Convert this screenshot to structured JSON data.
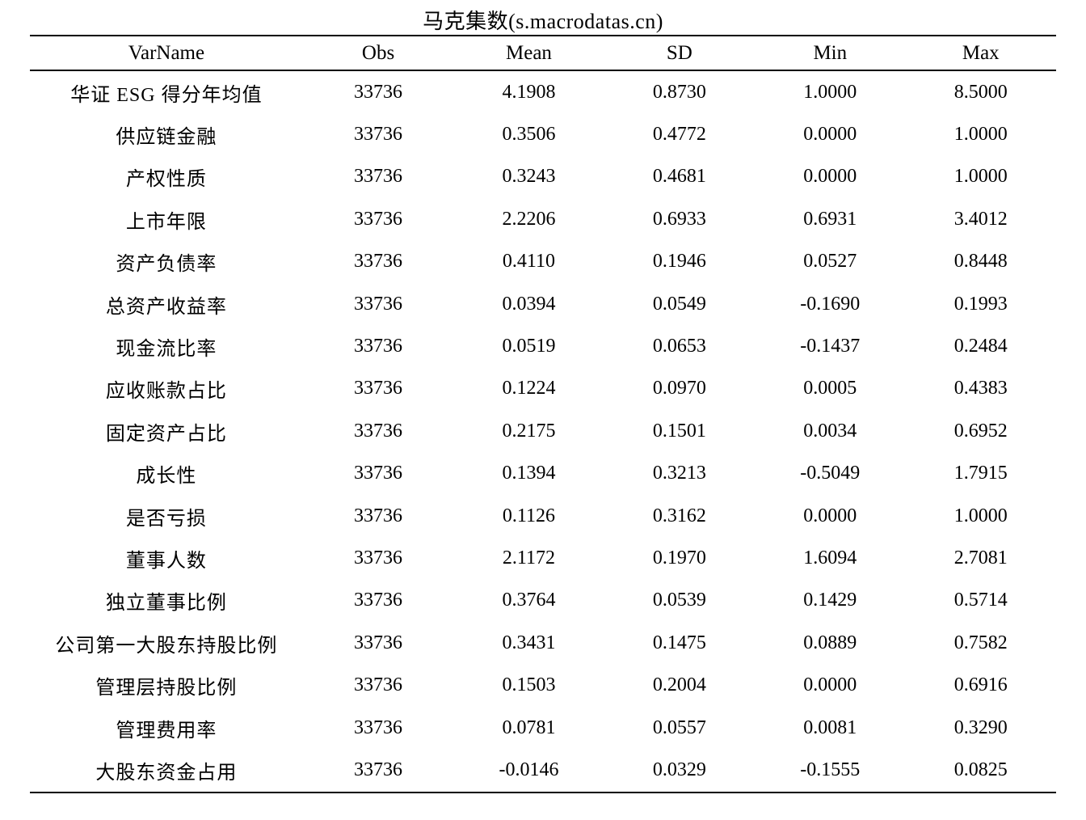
{
  "page": {
    "title": "马克集数(s.macrodatas.cn)"
  },
  "table": {
    "columns": [
      "VarName",
      "Obs",
      "Mean",
      "SD",
      "Min",
      "Max"
    ],
    "rows": [
      [
        "华证 ESG 得分年均值",
        "33736",
        "4.1908",
        "0.8730",
        "1.0000",
        "8.5000"
      ],
      [
        "供应链金融",
        "33736",
        "0.3506",
        "0.4772",
        "0.0000",
        "1.0000"
      ],
      [
        "产权性质",
        "33736",
        "0.3243",
        "0.4681",
        "0.0000",
        "1.0000"
      ],
      [
        "上市年限",
        "33736",
        "2.2206",
        "0.6933",
        "0.6931",
        "3.4012"
      ],
      [
        "资产负债率",
        "33736",
        "0.4110",
        "0.1946",
        "0.0527",
        "0.8448"
      ],
      [
        "总资产收益率",
        "33736",
        "0.0394",
        "0.0549",
        "-0.1690",
        "0.1993"
      ],
      [
        "现金流比率",
        "33736",
        "0.0519",
        "0.0653",
        "-0.1437",
        "0.2484"
      ],
      [
        "应收账款占比",
        "33736",
        "0.1224",
        "0.0970",
        "0.0005",
        "0.4383"
      ],
      [
        "固定资产占比",
        "33736",
        "0.2175",
        "0.1501",
        "0.0034",
        "0.6952"
      ],
      [
        "成长性",
        "33736",
        "0.1394",
        "0.3213",
        "-0.5049",
        "1.7915"
      ],
      [
        "是否亏损",
        "33736",
        "0.1126",
        "0.3162",
        "0.0000",
        "1.0000"
      ],
      [
        "董事人数",
        "33736",
        "2.1172",
        "0.1970",
        "1.6094",
        "2.7081"
      ],
      [
        "独立董事比例",
        "33736",
        "0.3764",
        "0.0539",
        "0.1429",
        "0.5714"
      ],
      [
        "公司第一大股东持股比例",
        "33736",
        "0.3431",
        "0.1475",
        "0.0889",
        "0.7582"
      ],
      [
        "管理层持股比例",
        "33736",
        "0.1503",
        "0.2004",
        "0.0000",
        "0.6916"
      ],
      [
        "管理费用率",
        "33736",
        "0.0781",
        "0.0557",
        "0.0081",
        "0.3290"
      ],
      [
        "大股东资金占用",
        "33736",
        "-0.0146",
        "0.0329",
        "-0.1555",
        "0.0825"
      ]
    ],
    "cell_names": [
      "varname-cell",
      "obs-cell",
      "mean-cell",
      "sd-cell",
      "min-cell",
      "max-cell"
    ]
  }
}
